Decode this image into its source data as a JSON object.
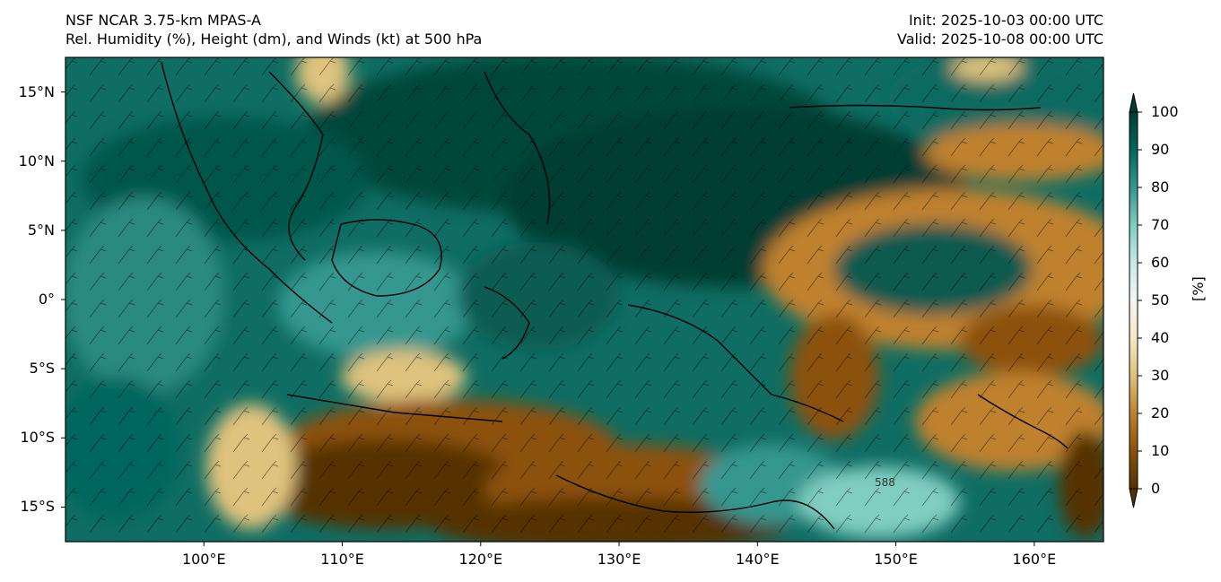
{
  "title": {
    "left_line1": "NSF NCAR 3.75-km MPAS-A",
    "left_line2": "Rel. Humidity (%), Height (dm), and Winds (kt) at 500 hPa",
    "right_line1": "Init: 2025-10-03 00:00 UTC",
    "right_line2": "Valid: 2025-10-08 00:00 UTC"
  },
  "map": {
    "lat_ticks": [
      "15°N",
      "10°N",
      "5°N",
      "0°",
      "5°S",
      "10°S",
      "15°S"
    ],
    "lat_values": [
      15,
      10,
      5,
      0,
      -5,
      -10,
      -15
    ],
    "lon_ticks": [
      "100°E",
      "110°E",
      "120°E",
      "130°E",
      "140°E",
      "150°E",
      "160°E"
    ],
    "lon_values": [
      100,
      110,
      120,
      130,
      140,
      150,
      160
    ],
    "lon_range": [
      90,
      165
    ],
    "lat_range": [
      -17.5,
      17.5
    ],
    "contour_label": "588"
  },
  "colorbar": {
    "label": "[%]",
    "ticks": [
      "100",
      "90",
      "80",
      "70",
      "60",
      "50",
      "40",
      "30",
      "20",
      "10",
      "0"
    ],
    "tick_values": [
      100,
      90,
      80,
      70,
      60,
      50,
      40,
      30,
      20,
      10,
      0
    ],
    "colors": [
      "#543005",
      "#8c510a",
      "#bf812d",
      "#dfc27d",
      "#f6e8c3",
      "#f5f5f5",
      "#c7eae5",
      "#80cdc1",
      "#35978f",
      "#01665e",
      "#003c30"
    ]
  }
}
